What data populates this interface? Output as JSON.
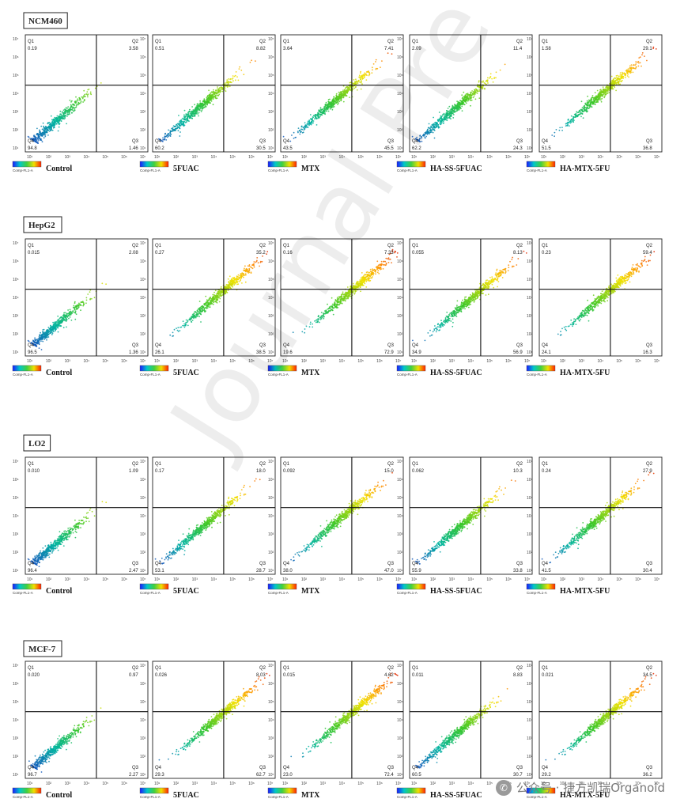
{
  "watermark": "Journal Pre",
  "credit": "公众号 · 捷方凯瑞Organoid",
  "chart_data": [
    {
      "type": "scatter",
      "cell_line": "NCM460",
      "colorbar_label": "Comp-FL1-A",
      "panels": [
        {
          "label": "Control",
          "q1": "0.19",
          "q2": "3.58",
          "q3": "1.46",
          "q4": "94.8"
        },
        {
          "label": "5FUAC",
          "q1": "0.51",
          "q2": "8.82",
          "q3": "30.5",
          "q4": "60.2"
        },
        {
          "label": "MTX",
          "q1": "3.64",
          "q2": "7.41",
          "q3": "45.5",
          "q4": "43.5"
        },
        {
          "label": "HA-SS-5FUAC",
          "q1": "2.09",
          "q2": "11.4",
          "q3": "24.3",
          "q4": "62.2"
        },
        {
          "label": "HA-MTX-5FU",
          "q1": "1.58",
          "q2": "29.1",
          "q3": "36.8",
          "q4": "51.5"
        }
      ]
    },
    {
      "type": "scatter",
      "cell_line": "HepG2",
      "colorbar_label": "Comp-FL1-A",
      "panels": [
        {
          "label": "Control",
          "q1": "0.015",
          "q2": "2.08",
          "q3": "1.36",
          "q4": "96.5"
        },
        {
          "label": "5FUAC",
          "q1": "0.27",
          "q2": "35.2",
          "q3": "38.5",
          "q4": "26.1"
        },
        {
          "label": "MTX",
          "q1": "0.16",
          "q2": "7.33",
          "q3": "72.9",
          "q4": "19.6"
        },
        {
          "label": "HA-SS-5FUAC",
          "q1": "0.055",
          "q2": "8.13",
          "q3": "56.9",
          "q4": "34.9"
        },
        {
          "label": "HA-MTX-5FU",
          "q1": "0.23",
          "q2": "59.4",
          "q3": "16.3",
          "q4": "24.1"
        }
      ]
    },
    {
      "type": "scatter",
      "cell_line": "LO2",
      "colorbar_label": "Comp-FL1-A",
      "panels": [
        {
          "label": "Control",
          "q1": "0.010",
          "q2": "1.09",
          "q3": "2.47",
          "q4": "96.4"
        },
        {
          "label": "5FUAC",
          "q1": "0.17",
          "q2": "18.0",
          "q3": "28.7",
          "q4": "53.1"
        },
        {
          "label": "MTX",
          "q1": "0.092",
          "q2": "15.0",
          "q3": "47.0",
          "q4": "38.0"
        },
        {
          "label": "HA-SS-5FUAC",
          "q1": "0.062",
          "q2": "10.3",
          "q3": "33.8",
          "q4": "55.9"
        },
        {
          "label": "HA-MTX-5FU",
          "q1": "0.24",
          "q2": "27.9",
          "q3": "30.4",
          "q4": "41.5"
        }
      ]
    },
    {
      "type": "scatter",
      "cell_line": "MCF-7",
      "colorbar_label": "Comp-FL1-A",
      "panels": [
        {
          "label": "Control",
          "q1": "0.020",
          "q2": "0.97",
          "q3": "2.27",
          "q4": "96.7"
        },
        {
          "label": "5FUAC",
          "q1": "0.026",
          "q2": "8.03",
          "q3": "62.7",
          "q4": "29.3"
        },
        {
          "label": "MTX",
          "q1": "0.015",
          "q2": "4.62",
          "q3": "72.4",
          "q4": "23.0"
        },
        {
          "label": "HA-SS-5FUAC",
          "q1": "0.011",
          "q2": "8.83",
          "q3": "30.7",
          "q4": "60.5"
        },
        {
          "label": "HA-MTX-5FU",
          "q1": "0.021",
          "q2": "34.5",
          "q3": "36.2",
          "q4": "29.2"
        }
      ]
    }
  ]
}
